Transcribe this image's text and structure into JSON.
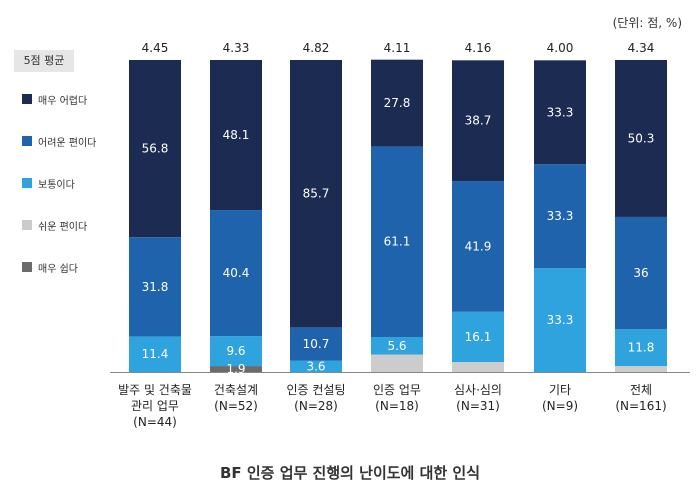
{
  "unit_note": "(단위: 점, %)",
  "caption": "BF 인증 업무 진행의 난이도에 대한 인식",
  "avg_label": "5점 평균",
  "colors": {
    "very_hard": "#1c2b52",
    "somewhat_hard": "#1f63ad",
    "normal": "#2ea3dd",
    "somewhat_easy": "#cccccc",
    "very_easy": "#6b6b6b"
  },
  "chart_data": {
    "type": "bar",
    "stacked": true,
    "categories": [
      [
        "발주 및 건축물",
        "관리 업무",
        "(N=44)"
      ],
      [
        "건축설계",
        "(N=52)"
      ],
      [
        "인증 컨설팅",
        "(N=28)"
      ],
      [
        "인증 업무",
        "(N=18)"
      ],
      [
        "심사·심의",
        "(N=31)"
      ],
      [
        "기타",
        "(N=9)"
      ],
      [
        "전체",
        "(N=161)"
      ]
    ],
    "averages": [
      "4.45",
      "4.33",
      "4.82",
      "4.11",
      "4.16",
      "4.00",
      "4.34"
    ],
    "series": [
      {
        "name": "매우 쉽다",
        "key": "very_easy",
        "values": [
          0,
          1.9,
          0,
          0,
          0,
          0,
          0
        ],
        "labels": [
          "",
          "",
          "",
          "",
          "",
          "",
          ""
        ]
      },
      {
        "name": "쉬운 편이다",
        "key": "somewhat_easy",
        "values": [
          0,
          0,
          0,
          5.6,
          3.2,
          0,
          1.9
        ],
        "labels": [
          "",
          "",
          "",
          "",
          "",
          "",
          ""
        ]
      },
      {
        "name": "보통이다",
        "key": "normal",
        "values": [
          11.4,
          9.6,
          3.6,
          5.6,
          16.1,
          33.3,
          11.8
        ],
        "labels": [
          "11.4",
          "9.6",
          "3.6",
          "5.6",
          "16.1",
          "33.3",
          "11.8"
        ]
      },
      {
        "name": "어려운 편이다",
        "key": "somewhat_hard",
        "values": [
          31.8,
          40.4,
          10.7,
          61.1,
          41.9,
          33.3,
          36
        ],
        "labels": [
          "31.8",
          "40.4",
          "10.7",
          "61.1",
          "41.9",
          "33.3",
          "36"
        ]
      },
      {
        "name": "매우 어렵다",
        "key": "very_hard",
        "values": [
          56.8,
          48.1,
          85.7,
          27.8,
          38.7,
          33.3,
          50.3
        ],
        "labels": [
          "56.8",
          "48.1",
          "85.7",
          "27.8",
          "38.7",
          "33.3",
          "50.3"
        ]
      }
    ],
    "extra_labels": [
      {
        "category_index": 1,
        "series_key": "very_easy",
        "text": "1.9"
      }
    ],
    "legend_order": [
      "very_hard",
      "somewhat_hard",
      "normal",
      "somewhat_easy",
      "very_easy"
    ],
    "ylim": [
      0,
      100
    ],
    "grid": false,
    "legend_position": "left"
  }
}
